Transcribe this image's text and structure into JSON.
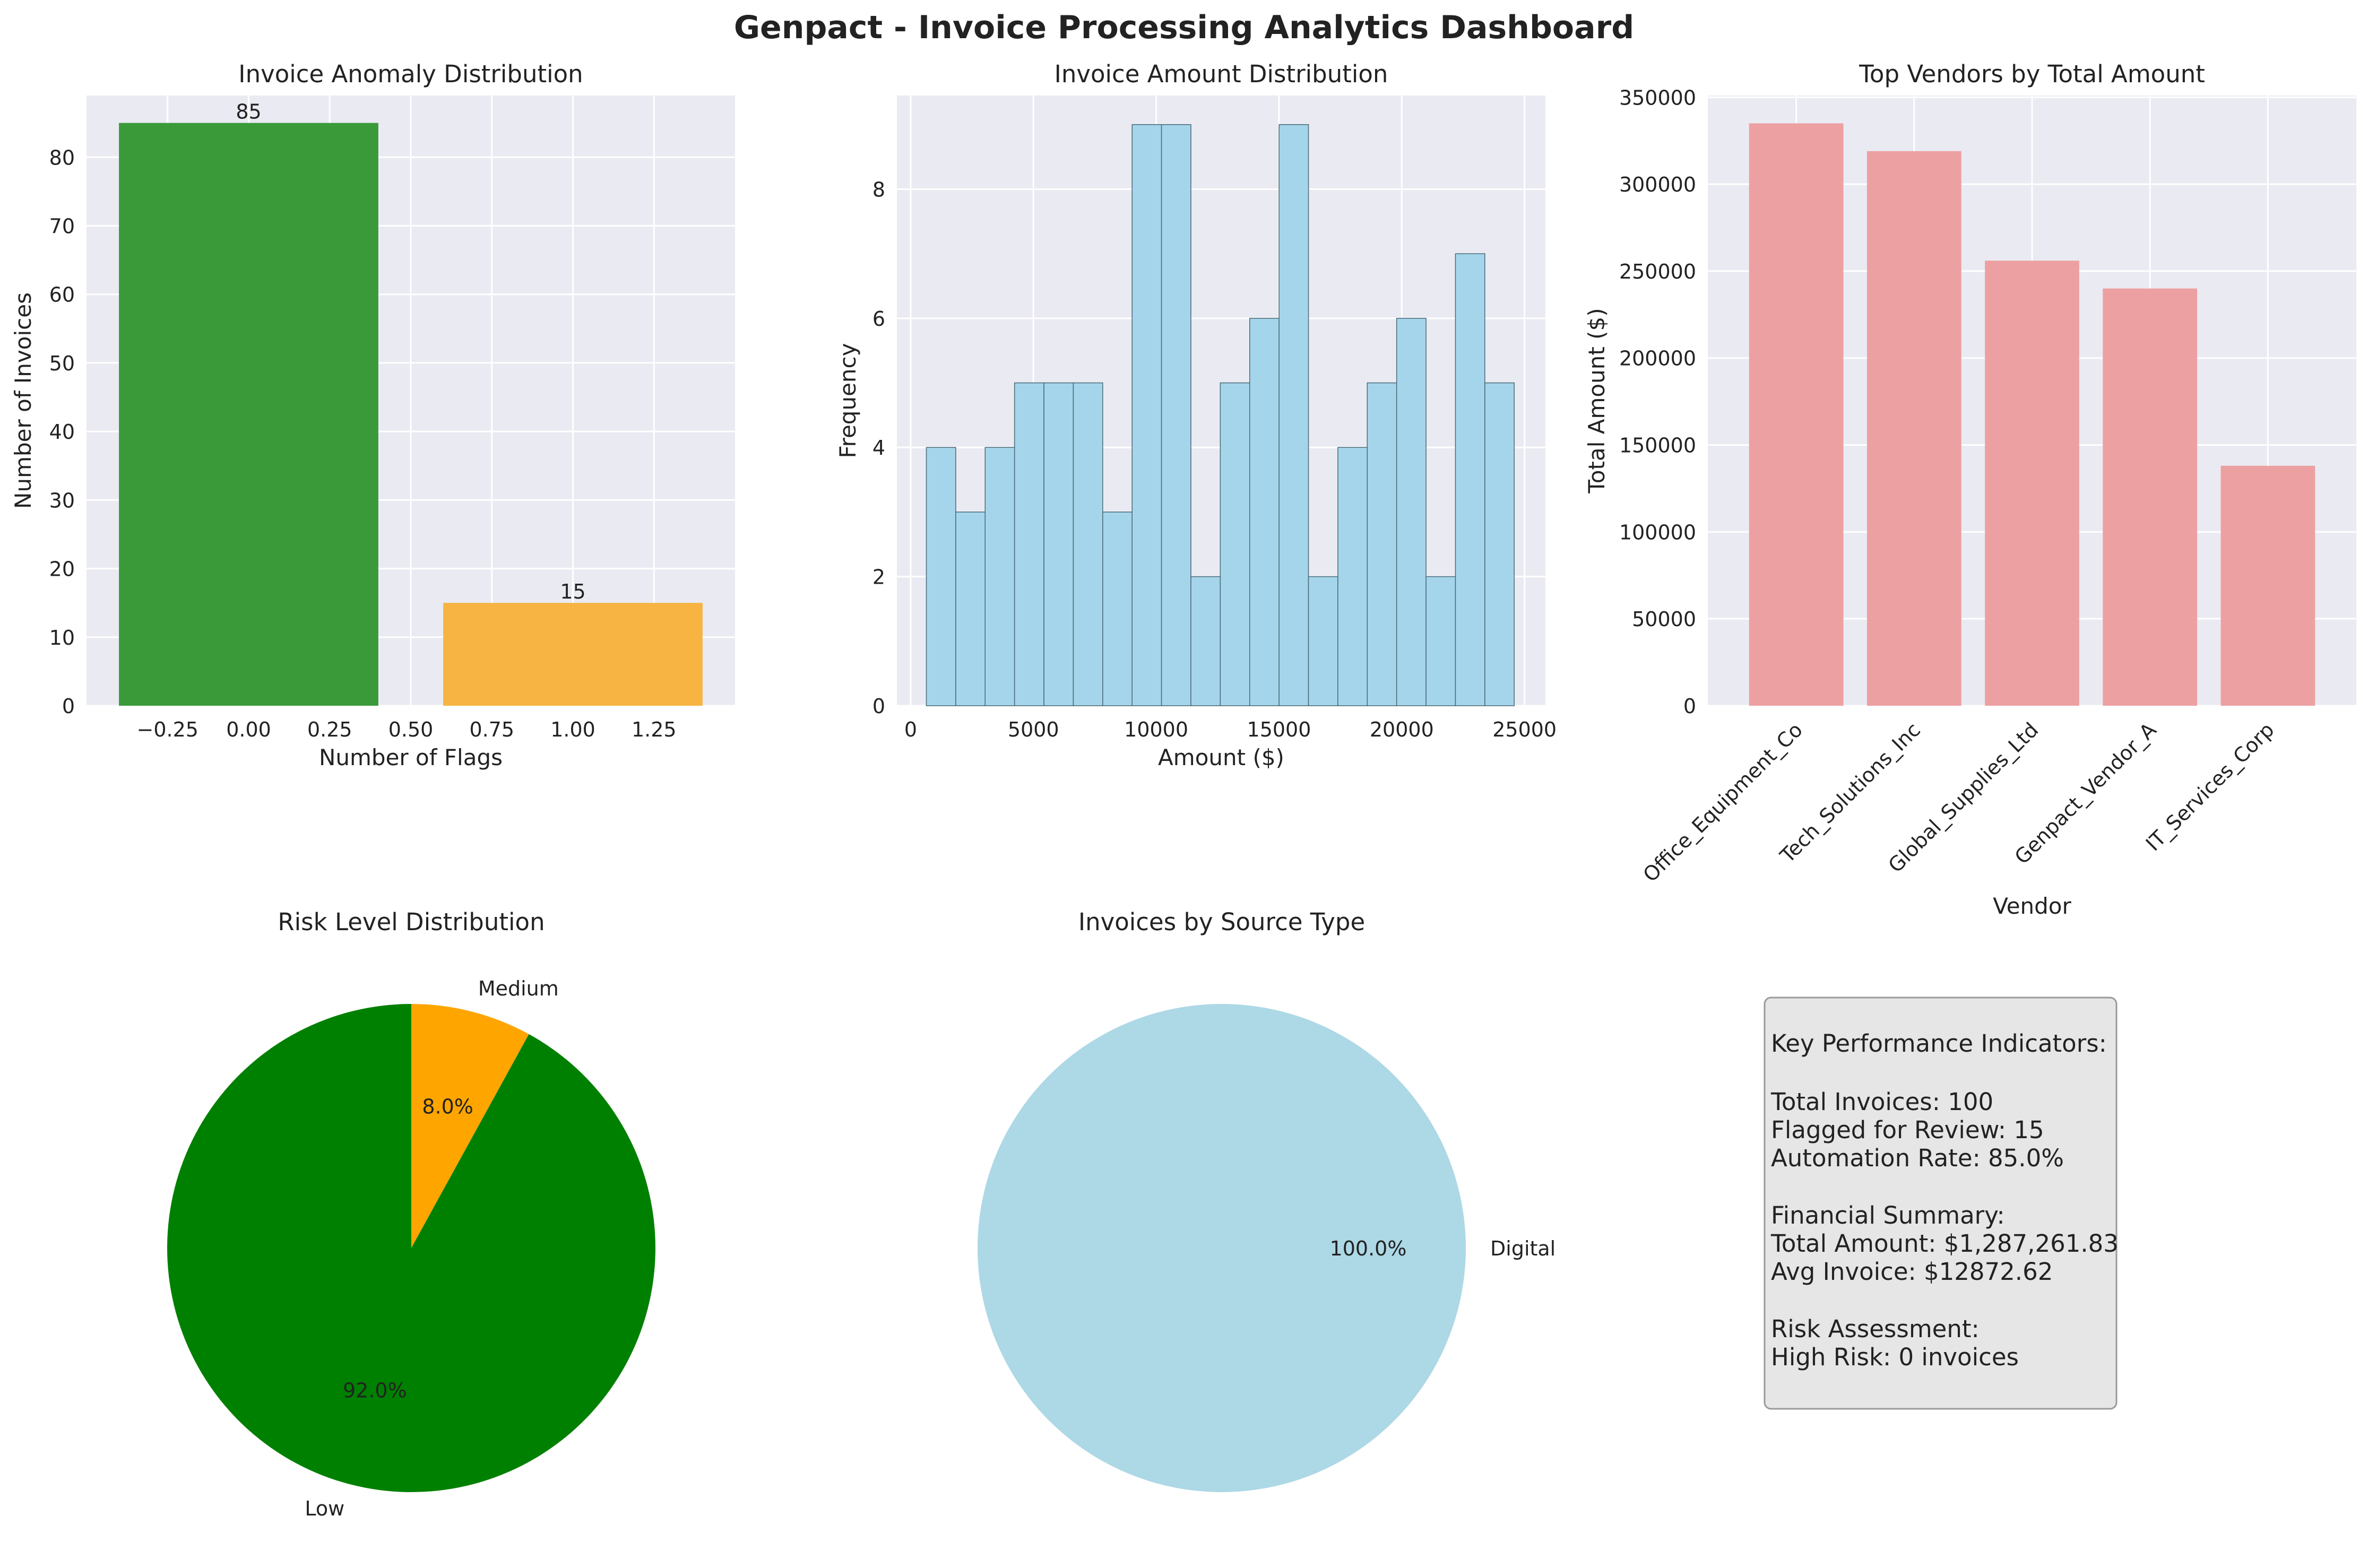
{
  "title": "Genpact - Invoice Processing Analytics Dashboard",
  "colors": {
    "panel_bg": "#eaeaf2",
    "grid": "#ffffff",
    "green": "#3a9a3a",
    "orange": "#f7b442",
    "skyblue": "#a5d5ea",
    "lightcoral": "#eda0a2",
    "pie_green": "#008000",
    "pie_orange": "#ffa500",
    "lightblue": "#add8e6",
    "kpi_bg": "#e6e6e6"
  },
  "chart_data": [
    {
      "type": "bar",
      "title": "Invoice Anomaly Distribution",
      "xlabel": "Number of Flags",
      "ylabel": "Number of Invoices",
      "categories": [
        0,
        1
      ],
      "values": [
        85,
        15
      ],
      "bar_colors": [
        "green",
        "orange"
      ],
      "xlim": [
        -0.5,
        1.5
      ],
      "ylim": [
        0,
        89
      ],
      "xticks": [
        "−0.25",
        "0.00",
        "0.25",
        "0.50",
        "0.75",
        "1.00",
        "1.25"
      ],
      "yticks": [
        "0",
        "10",
        "20",
        "30",
        "40",
        "50",
        "60",
        "70",
        "80"
      ],
      "data_labels": [
        "85",
        "15"
      ],
      "grid": true
    },
    {
      "type": "bar",
      "subtype": "histogram",
      "title": "Invoice Amount Distribution",
      "xlabel": "Amount ($)",
      "ylabel": "Frequency",
      "bin_start": 640,
      "bin_width": 1197,
      "values": [
        4,
        3,
        4,
        5,
        5,
        5,
        3,
        9,
        9,
        2,
        5,
        6,
        9,
        2,
        4,
        5,
        6,
        2,
        7,
        5
      ],
      "xlim": [
        -560,
        25850
      ],
      "ylim": [
        0,
        9.45
      ],
      "xticks": [
        "0",
        "5000",
        "10000",
        "15000",
        "20000",
        "25000"
      ],
      "yticks": [
        "0",
        "2",
        "4",
        "6",
        "8"
      ],
      "grid": true
    },
    {
      "type": "bar",
      "title": "Top Vendors by Total Amount",
      "xlabel": "Vendor",
      "ylabel": "Total Amount ($)",
      "categories": [
        "Office_Equipment_Co",
        "Tech_Solutions_Inc",
        "Global_Supplies_Ltd",
        "Genpact_Vendor_A",
        "IT_Services_Corp"
      ],
      "values": [
        335000,
        319000,
        256000,
        240000,
        138000
      ],
      "ylim": [
        0,
        351000
      ],
      "yticks": [
        "0",
        "50000",
        "100000",
        "150000",
        "200000",
        "250000",
        "300000",
        "350000"
      ],
      "grid": true
    },
    {
      "type": "pie",
      "title": "Risk Level Distribution",
      "labels": [
        "Medium",
        "Low"
      ],
      "values": [
        8.0,
        92.0
      ],
      "pct_labels": [
        "8.0%",
        "92.0%"
      ],
      "slice_colors": [
        "pie_orange",
        "pie_green"
      ]
    },
    {
      "type": "pie",
      "title": "Invoices by Source Type",
      "labels": [
        "Digital"
      ],
      "values": [
        100.0
      ],
      "pct_labels": [
        "100.0%"
      ],
      "slice_colors": [
        "lightblue"
      ]
    }
  ],
  "kpi": {
    "lines": [
      "Key Performance Indicators:",
      "",
      "Total Invoices: 100",
      "Flagged for Review: 15",
      "Automation Rate: 85.0%",
      "",
      "Financial Summary:",
      "Total Amount: $1,287,261.83",
      "Avg Invoice: $12872.62",
      "",
      "Risk Assessment:",
      "High Risk: 0 invoices"
    ]
  }
}
